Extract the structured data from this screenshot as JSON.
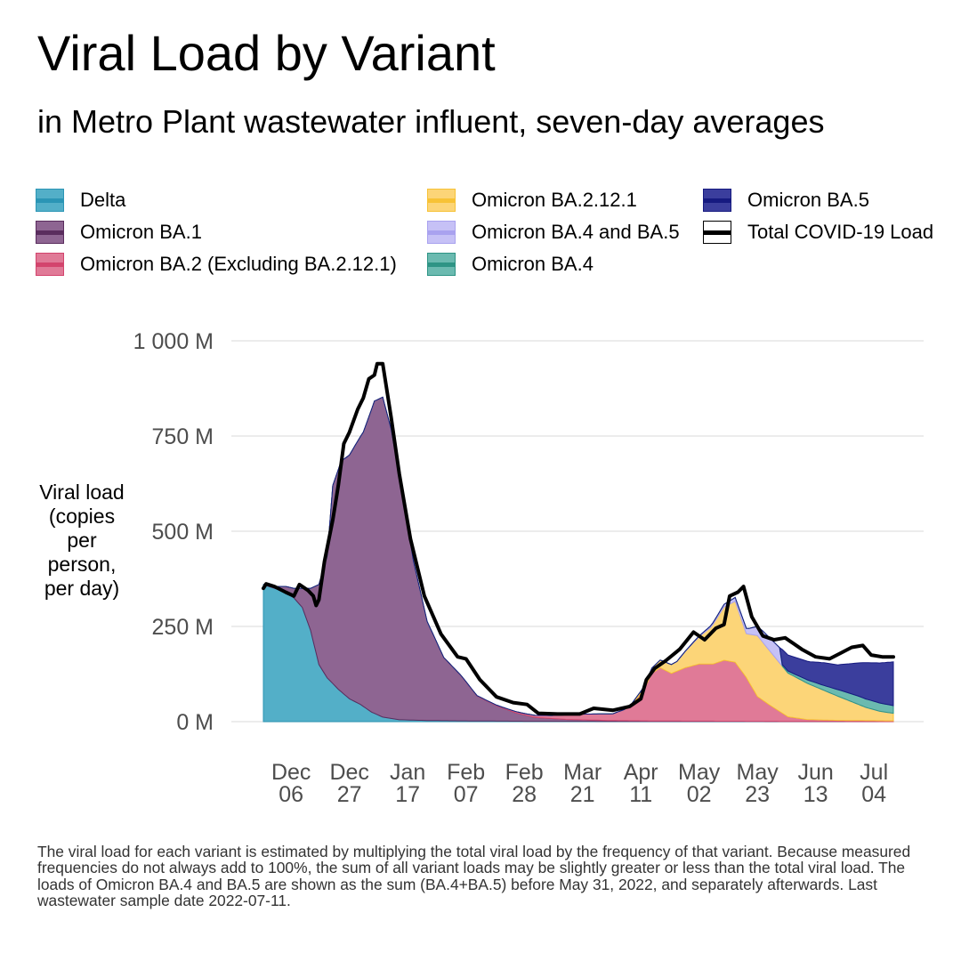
{
  "title": "Viral Load by Variant",
  "subtitle": "in Metro Plant wastewater influent, seven-day averages",
  "legend": {
    "items": [
      {
        "label": "Delta",
        "fill": "#53afc8",
        "border": "#2b95b5",
        "line": "#2b95b5"
      },
      {
        "label": "Omicron BA.1",
        "fill": "#8e6592",
        "border": "#5a2d5e",
        "line": "#5a2d5e"
      },
      {
        "label": "Omicron BA.2 (Excluding BA.2.12.1)",
        "fill": "#e07a97",
        "border": "#d3446d",
        "line": "#d3446d"
      },
      {
        "label": "Omicron BA.2.12.1",
        "fill": "#fcd578",
        "border": "#f7c236",
        "line": "#f7c236"
      },
      {
        "label": "Omicron BA.4 and BA.5",
        "fill": "#c6c1f6",
        "border": "#a9a2ef",
        "line": "#a9a2ef"
      },
      {
        "label": "Omicron BA.4",
        "fill": "#6bbab0",
        "border": "#2e9485",
        "line": "#2e9485"
      },
      {
        "label": "Omicron BA.5",
        "fill": "#3b3e9d",
        "border": "#161a80",
        "line": "#161a80"
      },
      {
        "label": "Total COVID-19 Load",
        "fill": "#ffffff",
        "border": "#000000",
        "line": "#000000"
      }
    ]
  },
  "y_axis_label": "Viral load\n(copies\nper\nperson,\nper day)",
  "caption": "The viral load for each variant is estimated by multiplying the total viral load by the frequency of that variant. Because measured frequencies do not always add to 100%, the sum of all variant loads may be slightly greater or less than the total viral load. The loads of Omicron BA.4 and BA.5 are shown as the sum (BA.4+BA.5) before May 31, 2022, and separately afterwards. Last wastewater sample date 2022-07-11.",
  "chart_data": {
    "type": "area",
    "stacked": true,
    "x_unit": "date",
    "x_start": "2021-11-26",
    "x_end": "2022-07-11",
    "x_ticks": [
      {
        "date": "2021-12-06",
        "label": "Dec\n06"
      },
      {
        "date": "2021-12-27",
        "label": "Dec\n27"
      },
      {
        "date": "2022-01-17",
        "label": "Jan\n17"
      },
      {
        "date": "2022-02-07",
        "label": "Feb\n07"
      },
      {
        "date": "2022-02-28",
        "label": "Feb\n28"
      },
      {
        "date": "2022-03-21",
        "label": "Mar\n21"
      },
      {
        "date": "2022-04-11",
        "label": "Apr\n11"
      },
      {
        "date": "2022-05-02",
        "label": "May\n02"
      },
      {
        "date": "2022-05-23",
        "label": "May\n23"
      },
      {
        "date": "2022-06-13",
        "label": "Jun\n13"
      },
      {
        "date": "2022-07-04",
        "label": "Jul\n04"
      }
    ],
    "y_unit": "million copies per person per day",
    "ylim": [
      0,
      1000
    ],
    "y_ticks": [
      {
        "value": 0,
        "label": "0 M"
      },
      {
        "value": 250,
        "label": "250 M"
      },
      {
        "value": 500,
        "label": "500 M"
      },
      {
        "value": 750,
        "label": "750 M"
      },
      {
        "value": 1000,
        "label": "1 000 M"
      }
    ],
    "grid": "horizontal",
    "legend_position": "top",
    "series": [
      {
        "name": "Delta",
        "color": "#53afc8",
        "stroke": "#2b95b5",
        "points": [
          [
            "2021-11-26",
            360
          ],
          [
            "2021-11-30",
            350
          ],
          [
            "2021-12-04",
            340
          ],
          [
            "2021-12-07",
            325
          ],
          [
            "2021-12-10",
            300
          ],
          [
            "2021-12-13",
            240
          ],
          [
            "2021-12-16",
            150
          ],
          [
            "2021-12-19",
            115
          ],
          [
            "2021-12-23",
            85
          ],
          [
            "2021-12-27",
            60
          ],
          [
            "2021-12-31",
            45
          ],
          [
            "2022-01-04",
            25
          ],
          [
            "2022-01-08",
            12
          ],
          [
            "2022-01-14",
            5
          ],
          [
            "2022-01-24",
            3
          ],
          [
            "2022-02-07",
            2
          ],
          [
            "2022-03-01",
            1
          ],
          [
            "2022-07-11",
            0
          ]
        ]
      },
      {
        "name": "Omicron BA.1",
        "color": "#8e6592",
        "stroke": "#5a2d5e",
        "points": [
          [
            "2021-11-26",
            0
          ],
          [
            "2021-11-30",
            5
          ],
          [
            "2021-12-04",
            15
          ],
          [
            "2021-12-07",
            25
          ],
          [
            "2021-12-10",
            50
          ],
          [
            "2021-12-13",
            110
          ],
          [
            "2021-12-16",
            210
          ],
          [
            "2021-12-19",
            320
          ],
          [
            "2021-12-21",
            520
          ],
          [
            "2021-12-24",
            605
          ],
          [
            "2021-12-27",
            640
          ],
          [
            "2022-01-01",
            720
          ],
          [
            "2022-01-05",
            820
          ],
          [
            "2022-01-08",
            840
          ],
          [
            "2022-01-11",
            760
          ],
          [
            "2022-01-15",
            600
          ],
          [
            "2022-01-19",
            420
          ],
          [
            "2022-01-24",
            260
          ],
          [
            "2022-01-30",
            165
          ],
          [
            "2022-02-05",
            120
          ],
          [
            "2022-02-11",
            65
          ],
          [
            "2022-02-18",
            40
          ],
          [
            "2022-02-25",
            22
          ],
          [
            "2022-03-04",
            10
          ],
          [
            "2022-03-15",
            5
          ],
          [
            "2022-04-01",
            2
          ],
          [
            "2022-04-20",
            1
          ],
          [
            "2022-07-11",
            0
          ]
        ]
      },
      {
        "name": "Omicron BA.2 (Excluding BA.2.12.1)",
        "color": "#e07a97",
        "stroke": "#d3446d",
        "points": [
          [
            "2021-11-26",
            0
          ],
          [
            "2022-01-20",
            0
          ],
          [
            "2022-02-05",
            1
          ],
          [
            "2022-02-20",
            2
          ],
          [
            "2022-03-01",
            4
          ],
          [
            "2022-03-10",
            8
          ],
          [
            "2022-03-18",
            14
          ],
          [
            "2022-03-25",
            16
          ],
          [
            "2022-04-01",
            18
          ],
          [
            "2022-04-07",
            35
          ],
          [
            "2022-04-12",
            80
          ],
          [
            "2022-04-15",
            125
          ],
          [
            "2022-04-18",
            140
          ],
          [
            "2022-04-22",
            125
          ],
          [
            "2022-04-27",
            140
          ],
          [
            "2022-05-02",
            150
          ],
          [
            "2022-05-07",
            150
          ],
          [
            "2022-05-11",
            160
          ],
          [
            "2022-05-15",
            155
          ],
          [
            "2022-05-19",
            115
          ],
          [
            "2022-05-23",
            65
          ],
          [
            "2022-05-28",
            40
          ],
          [
            "2022-06-03",
            12
          ],
          [
            "2022-06-10",
            5
          ],
          [
            "2022-06-20",
            3
          ],
          [
            "2022-07-11",
            2
          ]
        ]
      },
      {
        "name": "Omicron BA.2.12.1",
        "color": "#fcd578",
        "stroke": "#f7c236",
        "points": [
          [
            "2021-11-26",
            0
          ],
          [
            "2022-04-05",
            0
          ],
          [
            "2022-04-12",
            8
          ],
          [
            "2022-04-18",
            20
          ],
          [
            "2022-04-24",
            25
          ],
          [
            "2022-04-30",
            60
          ],
          [
            "2022-05-06",
            95
          ],
          [
            "2022-05-11",
            140
          ],
          [
            "2022-05-15",
            160
          ],
          [
            "2022-05-19",
            115
          ],
          [
            "2022-05-23",
            160
          ],
          [
            "2022-05-28",
            140
          ],
          [
            "2022-06-03",
            115
          ],
          [
            "2022-06-10",
            95
          ],
          [
            "2022-06-17",
            75
          ],
          [
            "2022-06-24",
            55
          ],
          [
            "2022-07-01",
            35
          ],
          [
            "2022-07-06",
            25
          ],
          [
            "2022-07-11",
            20
          ]
        ]
      },
      {
        "name": "Omicron BA.4 and BA.5",
        "color": "#c6c1f6",
        "stroke": "#a9a2ef",
        "points": [
          [
            "2021-11-26",
            0
          ],
          [
            "2022-04-22",
            0
          ],
          [
            "2022-05-02",
            2
          ],
          [
            "2022-05-10",
            6
          ],
          [
            "2022-05-15",
            10
          ],
          [
            "2022-05-20",
            15
          ],
          [
            "2022-05-25",
            30
          ],
          [
            "2022-05-31",
            40
          ],
          [
            "2022-06-01",
            0
          ],
          [
            "2022-07-11",
            0
          ]
        ]
      },
      {
        "name": "Omicron BA.4",
        "color": "#6bbab0",
        "stroke": "#2e9485",
        "points": [
          [
            "2021-11-26",
            0
          ],
          [
            "2022-05-31",
            0
          ],
          [
            "2022-06-01",
            4
          ],
          [
            "2022-06-08",
            8
          ],
          [
            "2022-06-15",
            12
          ],
          [
            "2022-06-22",
            18
          ],
          [
            "2022-06-29",
            22
          ],
          [
            "2022-07-05",
            22
          ],
          [
            "2022-07-11",
            20
          ]
        ]
      },
      {
        "name": "Omicron BA.5",
        "color": "#3b3e9d",
        "stroke": "#161a80",
        "points": [
          [
            "2021-11-26",
            0
          ],
          [
            "2022-05-31",
            0
          ],
          [
            "2022-06-01",
            40
          ],
          [
            "2022-06-06",
            45
          ],
          [
            "2022-06-11",
            50
          ],
          [
            "2022-06-16",
            60
          ],
          [
            "2022-06-21",
            65
          ],
          [
            "2022-06-26",
            80
          ],
          [
            "2022-07-01",
            95
          ],
          [
            "2022-07-06",
            105
          ],
          [
            "2022-07-11",
            115
          ]
        ]
      },
      {
        "name": "Total COVID-19 Load",
        "type": "line",
        "color": "#000000",
        "points": [
          [
            "2021-11-26",
            350
          ],
          [
            "2021-11-27",
            362
          ],
          [
            "2021-11-30",
            355
          ],
          [
            "2021-12-04",
            340
          ],
          [
            "2021-12-07",
            330
          ],
          [
            "2021-12-09",
            360
          ],
          [
            "2021-12-12",
            345
          ],
          [
            "2021-12-14",
            330
          ],
          [
            "2021-12-15",
            305
          ],
          [
            "2021-12-16",
            320
          ],
          [
            "2021-12-18",
            420
          ],
          [
            "2021-12-21",
            530
          ],
          [
            "2021-12-23",
            620
          ],
          [
            "2021-12-25",
            730
          ],
          [
            "2021-12-27",
            760
          ],
          [
            "2021-12-30",
            820
          ],
          [
            "2022-01-01",
            850
          ],
          [
            "2022-01-03",
            900
          ],
          [
            "2022-01-05",
            910
          ],
          [
            "2022-01-06",
            940
          ],
          [
            "2022-01-08",
            940
          ],
          [
            "2022-01-11",
            800
          ],
          [
            "2022-01-14",
            650
          ],
          [
            "2022-01-18",
            480
          ],
          [
            "2022-01-23",
            330
          ],
          [
            "2022-01-29",
            230
          ],
          [
            "2022-02-04",
            170
          ],
          [
            "2022-02-07",
            165
          ],
          [
            "2022-02-12",
            110
          ],
          [
            "2022-02-18",
            65
          ],
          [
            "2022-02-24",
            50
          ],
          [
            "2022-03-01",
            45
          ],
          [
            "2022-03-05",
            22
          ],
          [
            "2022-03-12",
            20
          ],
          [
            "2022-03-20",
            20
          ],
          [
            "2022-03-25",
            35
          ],
          [
            "2022-04-01",
            30
          ],
          [
            "2022-04-07",
            40
          ],
          [
            "2022-04-11",
            60
          ],
          [
            "2022-04-13",
            110
          ],
          [
            "2022-04-16",
            140
          ],
          [
            "2022-04-20",
            160
          ],
          [
            "2022-04-25",
            190
          ],
          [
            "2022-04-30",
            235
          ],
          [
            "2022-05-04",
            215
          ],
          [
            "2022-05-08",
            245
          ],
          [
            "2022-05-11",
            255
          ],
          [
            "2022-05-13",
            330
          ],
          [
            "2022-05-16",
            340
          ],
          [
            "2022-05-18",
            355
          ],
          [
            "2022-05-21",
            275
          ],
          [
            "2022-05-25",
            225
          ],
          [
            "2022-05-29",
            215
          ],
          [
            "2022-06-02",
            220
          ],
          [
            "2022-06-08",
            190
          ],
          [
            "2022-06-13",
            170
          ],
          [
            "2022-06-18",
            165
          ],
          [
            "2022-06-22",
            180
          ],
          [
            "2022-06-26",
            195
          ],
          [
            "2022-06-30",
            200
          ],
          [
            "2022-07-03",
            175
          ],
          [
            "2022-07-07",
            170
          ],
          [
            "2022-07-11",
            170
          ]
        ]
      }
    ]
  }
}
